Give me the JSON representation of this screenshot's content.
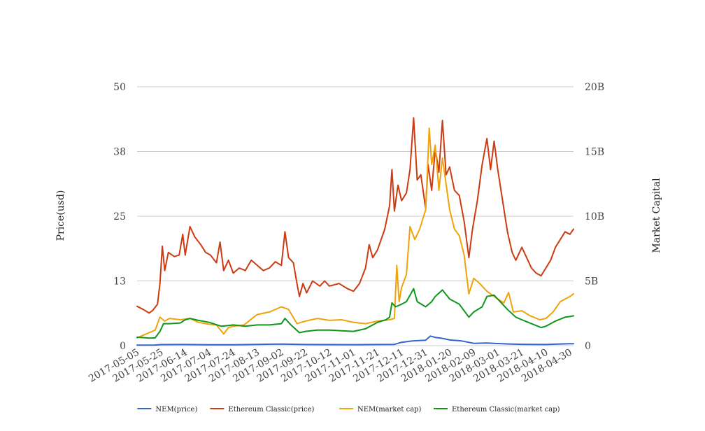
{
  "chart_data": {
    "type": "line",
    "title": "",
    "left_axis": {
      "label": "Price(usd)",
      "ticks": [
        "0",
        "13",
        "25",
        "38",
        "50"
      ],
      "range": [
        0,
        50
      ]
    },
    "right_axis": {
      "label": "Market Capital",
      "ticks": [
        "0",
        "5B",
        "10B",
        "15B",
        "20B"
      ],
      "range": [
        0,
        20000000000
      ]
    },
    "x_tick_labels": [
      "2017-05-05",
      "2017-05-25",
      "2017-06-14",
      "2017-07-04",
      "2017-07-24",
      "2017-08-13",
      "2017-09-02",
      "2017-09-22",
      "2017-10-12",
      "2017-11-01",
      "2017-11-21",
      "2017-12-11",
      "2017-12-31",
      "2018-01-20",
      "2018-02-09",
      "2018-03-01",
      "2018-03-21",
      "2018-04-10",
      "2018-04-30"
    ],
    "x_range": [
      "2017-05-05",
      "2018-05-03"
    ],
    "grid": true,
    "legend_position": "bottom",
    "series": [
      {
        "name": "NEM(price)",
        "color": "#3366cc",
        "axis": "left",
        "points": [
          [
            "2017-05-05",
            0.09
          ],
          [
            "2017-05-20",
            0.12
          ],
          [
            "2017-05-25",
            0.2
          ],
          [
            "2017-06-14",
            0.21
          ],
          [
            "2017-07-04",
            0.18
          ],
          [
            "2017-07-24",
            0.17
          ],
          [
            "2017-08-13",
            0.24
          ],
          [
            "2017-09-02",
            0.3
          ],
          [
            "2017-09-22",
            0.21
          ],
          [
            "2017-10-12",
            0.2
          ],
          [
            "2017-11-01",
            0.19
          ],
          [
            "2017-11-21",
            0.22
          ],
          [
            "2017-12-05",
            0.24
          ],
          [
            "2017-12-11",
            0.65
          ],
          [
            "2017-12-20",
            0.9
          ],
          [
            "2017-12-31",
            1.05
          ],
          [
            "2018-01-04",
            1.85
          ],
          [
            "2018-01-08",
            1.6
          ],
          [
            "2018-01-14",
            1.4
          ],
          [
            "2018-01-20",
            1.1
          ],
          [
            "2018-01-30",
            0.9
          ],
          [
            "2018-02-09",
            0.45
          ],
          [
            "2018-02-20",
            0.5
          ],
          [
            "2018-03-01",
            0.4
          ],
          [
            "2018-03-10",
            0.33
          ],
          [
            "2018-03-21",
            0.25
          ],
          [
            "2018-04-10",
            0.22
          ],
          [
            "2018-04-20",
            0.3
          ],
          [
            "2018-04-30",
            0.37
          ],
          [
            "2018-05-03",
            0.38
          ]
        ]
      },
      {
        "name": "Ethereum Classic(price)",
        "color": "#cc3b11",
        "axis": "left",
        "points": [
          [
            "2017-05-05",
            7.6
          ],
          [
            "2017-05-10",
            7.0
          ],
          [
            "2017-05-15",
            6.3
          ],
          [
            "2017-05-18",
            6.8
          ],
          [
            "2017-05-22",
            8.0
          ],
          [
            "2017-05-24",
            12.0
          ],
          [
            "2017-05-26",
            19.2
          ],
          [
            "2017-05-28",
            14.5
          ],
          [
            "2017-05-31",
            18.0
          ],
          [
            "2017-06-05",
            17.2
          ],
          [
            "2017-06-09",
            17.5
          ],
          [
            "2017-06-12",
            21.5
          ],
          [
            "2017-06-14",
            17.5
          ],
          [
            "2017-06-18",
            23.0
          ],
          [
            "2017-06-22",
            21.0
          ],
          [
            "2017-06-27",
            19.5
          ],
          [
            "2017-07-01",
            18.0
          ],
          [
            "2017-07-05",
            17.5
          ],
          [
            "2017-07-10",
            16.0
          ],
          [
            "2017-07-13",
            20.0
          ],
          [
            "2017-07-16",
            14.5
          ],
          [
            "2017-07-20",
            16.5
          ],
          [
            "2017-07-24",
            14.0
          ],
          [
            "2017-07-29",
            15.0
          ],
          [
            "2017-08-03",
            14.5
          ],
          [
            "2017-08-08",
            16.5
          ],
          [
            "2017-08-13",
            15.5
          ],
          [
            "2017-08-18",
            14.5
          ],
          [
            "2017-08-23",
            15.0
          ],
          [
            "2017-08-28",
            16.2
          ],
          [
            "2017-09-02",
            15.5
          ],
          [
            "2017-09-05",
            22.0
          ],
          [
            "2017-09-08",
            17.0
          ],
          [
            "2017-09-12",
            16.0
          ],
          [
            "2017-09-15",
            12.0
          ],
          [
            "2017-09-17",
            9.5
          ],
          [
            "2017-09-20",
            12.0
          ],
          [
            "2017-09-23",
            10.2
          ],
          [
            "2017-09-28",
            12.5
          ],
          [
            "2017-10-04",
            11.5
          ],
          [
            "2017-10-08",
            12.5
          ],
          [
            "2017-10-12",
            11.5
          ],
          [
            "2017-10-20",
            12.0
          ],
          [
            "2017-10-27",
            11.0
          ],
          [
            "2017-11-01",
            10.5
          ],
          [
            "2017-11-06",
            12.0
          ],
          [
            "2017-11-11",
            15.0
          ],
          [
            "2017-11-14",
            19.5
          ],
          [
            "2017-11-17",
            17.0
          ],
          [
            "2017-11-21",
            18.5
          ],
          [
            "2017-11-27",
            22.5
          ],
          [
            "2017-12-01",
            27.0
          ],
          [
            "2017-12-03",
            34.0
          ],
          [
            "2017-12-05",
            26.0
          ],
          [
            "2017-12-08",
            31.0
          ],
          [
            "2017-12-11",
            28.0
          ],
          [
            "2017-12-15",
            29.5
          ],
          [
            "2017-12-18",
            34.0
          ],
          [
            "2017-12-21",
            44.0
          ],
          [
            "2017-12-24",
            32.0
          ],
          [
            "2017-12-27",
            33.0
          ],
          [
            "2017-12-31",
            26.5
          ],
          [
            "2018-01-02",
            35.0
          ],
          [
            "2018-01-05",
            30.0
          ],
          [
            "2018-01-08",
            38.0
          ],
          [
            "2018-01-11",
            33.5
          ],
          [
            "2018-01-14",
            43.5
          ],
          [
            "2018-01-17",
            33.0
          ],
          [
            "2018-01-20",
            34.5
          ],
          [
            "2018-01-24",
            30.0
          ],
          [
            "2018-01-28",
            29.0
          ],
          [
            "2018-02-01",
            24.0
          ],
          [
            "2018-02-05",
            17.0
          ],
          [
            "2018-02-08",
            22.5
          ],
          [
            "2018-02-12",
            28.0
          ],
          [
            "2018-02-16",
            35.0
          ],
          [
            "2018-02-20",
            40.0
          ],
          [
            "2018-02-23",
            34.0
          ],
          [
            "2018-02-26",
            39.5
          ],
          [
            "2018-03-01",
            34.0
          ],
          [
            "2018-03-05",
            28.0
          ],
          [
            "2018-03-09",
            22.0
          ],
          [
            "2018-03-13",
            18.0
          ],
          [
            "2018-03-16",
            16.5
          ],
          [
            "2018-03-21",
            19.0
          ],
          [
            "2018-03-25",
            17.0
          ],
          [
            "2018-03-29",
            15.0
          ],
          [
            "2018-04-02",
            14.0
          ],
          [
            "2018-04-06",
            13.5
          ],
          [
            "2018-04-10",
            15.0
          ],
          [
            "2018-04-14",
            16.5
          ],
          [
            "2018-04-18",
            19.0
          ],
          [
            "2018-04-22",
            20.5
          ],
          [
            "2018-04-26",
            22.0
          ],
          [
            "2018-04-30",
            21.5
          ],
          [
            "2018-05-03",
            22.5
          ]
        ]
      },
      {
        "name": "NEM(market cap)",
        "color": "#f0a30a",
        "axis": "right",
        "points": [
          [
            "2017-05-05",
            600000000.0
          ],
          [
            "2017-05-10",
            800000000.0
          ],
          [
            "2017-05-15",
            1000000000.0
          ],
          [
            "2017-05-20",
            1200000000.0
          ],
          [
            "2017-05-24",
            2200000000.0
          ],
          [
            "2017-05-28",
            1900000000.0
          ],
          [
            "2017-06-01",
            2100000000.0
          ],
          [
            "2017-06-10",
            2000000000.0
          ],
          [
            "2017-06-18",
            2100000000.0
          ],
          [
            "2017-06-25",
            1800000000.0
          ],
          [
            "2017-07-04",
            1650000000.0
          ],
          [
            "2017-07-10",
            1600000000.0
          ],
          [
            "2017-07-16",
            900000000.0
          ],
          [
            "2017-07-20",
            1400000000.0
          ],
          [
            "2017-07-24",
            1500000000.0
          ],
          [
            "2017-08-02",
            1600000000.0
          ],
          [
            "2017-08-10",
            2200000000.0
          ],
          [
            "2017-08-13",
            2400000000.0
          ],
          [
            "2017-08-23",
            2600000000.0
          ],
          [
            "2017-09-02",
            3000000000.0
          ],
          [
            "2017-09-08",
            2800000000.0
          ],
          [
            "2017-09-15",
            1700000000.0
          ],
          [
            "2017-09-22",
            1900000000.0
          ],
          [
            "2017-10-02",
            2100000000.0
          ],
          [
            "2017-10-12",
            1950000000.0
          ],
          [
            "2017-10-22",
            2000000000.0
          ],
          [
            "2017-11-01",
            1800000000.0
          ],
          [
            "2017-11-11",
            1700000000.0
          ],
          [
            "2017-11-21",
            1900000000.0
          ],
          [
            "2017-12-01",
            2000000000.0
          ],
          [
            "2017-12-05",
            2100000000.0
          ],
          [
            "2017-12-07",
            6200000000.0
          ],
          [
            "2017-12-09",
            3400000000.0
          ],
          [
            "2017-12-11",
            4500000000.0
          ],
          [
            "2017-12-15",
            5500000000.0
          ],
          [
            "2017-12-18",
            9200000000.0
          ],
          [
            "2017-12-22",
            8200000000.0
          ],
          [
            "2017-12-26",
            9000000000.0
          ],
          [
            "2017-12-31",
            10500000000.0
          ],
          [
            "2018-01-03",
            16800000000.0
          ],
          [
            "2018-01-05",
            14000000000.0
          ],
          [
            "2018-01-08",
            15500000000.0
          ],
          [
            "2018-01-11",
            12000000000.0
          ],
          [
            "2018-01-14",
            14500000000.0
          ],
          [
            "2018-01-20",
            10500000000.0
          ],
          [
            "2018-01-24",
            9000000000.0
          ],
          [
            "2018-01-28",
            8500000000.0
          ],
          [
            "2018-02-01",
            7000000000.0
          ],
          [
            "2018-02-05",
            4000000000.0
          ],
          [
            "2018-02-09",
            5200000000.0
          ],
          [
            "2018-02-14",
            4800000000.0
          ],
          [
            "2018-02-20",
            4200000000.0
          ],
          [
            "2018-03-01",
            3600000000.0
          ],
          [
            "2018-03-06",
            3300000000.0
          ],
          [
            "2018-03-10",
            4100000000.0
          ],
          [
            "2018-03-14",
            2600000000.0
          ],
          [
            "2018-03-21",
            2700000000.0
          ],
          [
            "2018-03-28",
            2300000000.0
          ],
          [
            "2018-04-05",
            2000000000.0
          ],
          [
            "2018-04-10",
            2100000000.0
          ],
          [
            "2018-04-16",
            2600000000.0
          ],
          [
            "2018-04-22",
            3400000000.0
          ],
          [
            "2018-04-30",
            3800000000.0
          ],
          [
            "2018-05-03",
            4000000000.0
          ]
        ]
      },
      {
        "name": "Ethereum Classic(market cap)",
        "color": "#109618",
        "axis": "right",
        "points": [
          [
            "2017-05-05",
            650000000.0
          ],
          [
            "2017-05-10",
            620000000.0
          ],
          [
            "2017-05-15",
            580000000.0
          ],
          [
            "2017-05-20",
            600000000.0
          ],
          [
            "2017-05-24",
            1100000000.0
          ],
          [
            "2017-05-27",
            1700000000.0
          ],
          [
            "2017-06-01",
            1700000000.0
          ],
          [
            "2017-06-10",
            1750000000.0
          ],
          [
            "2017-06-14",
            2000000000.0
          ],
          [
            "2017-06-18",
            2100000000.0
          ],
          [
            "2017-06-25",
            1950000000.0
          ],
          [
            "2017-07-04",
            1800000000.0
          ],
          [
            "2017-07-14",
            1500000000.0
          ],
          [
            "2017-07-20",
            1550000000.0
          ],
          [
            "2017-07-24",
            1600000000.0
          ],
          [
            "2017-08-03",
            1500000000.0
          ],
          [
            "2017-08-13",
            1600000000.0
          ],
          [
            "2017-08-23",
            1600000000.0
          ],
          [
            "2017-09-02",
            1700000000.0
          ],
          [
            "2017-09-05",
            2100000000.0
          ],
          [
            "2017-09-10",
            1600000000.0
          ],
          [
            "2017-09-17",
            1000000000.0
          ],
          [
            "2017-09-22",
            1100000000.0
          ],
          [
            "2017-10-02",
            1200000000.0
          ],
          [
            "2017-10-12",
            1200000000.0
          ],
          [
            "2017-10-22",
            1150000000.0
          ],
          [
            "2017-11-01",
            1100000000.0
          ],
          [
            "2017-11-11",
            1300000000.0
          ],
          [
            "2017-11-21",
            1800000000.0
          ],
          [
            "2017-11-28",
            2000000000.0
          ],
          [
            "2017-12-01",
            2200000000.0
          ],
          [
            "2017-12-03",
            3300000000.0
          ],
          [
            "2017-12-06",
            3000000000.0
          ],
          [
            "2017-12-11",
            3200000000.0
          ],
          [
            "2017-12-15",
            3400000000.0
          ],
          [
            "2017-12-21",
            4400000000.0
          ],
          [
            "2017-12-24",
            3400000000.0
          ],
          [
            "2017-12-31",
            3000000000.0
          ],
          [
            "2018-01-05",
            3400000000.0
          ],
          [
            "2018-01-08",
            3800000000.0
          ],
          [
            "2018-01-14",
            4300000000.0
          ],
          [
            "2018-01-20",
            3600000000.0
          ],
          [
            "2018-01-28",
            3200000000.0
          ],
          [
            "2018-02-05",
            2200000000.0
          ],
          [
            "2018-02-09",
            2600000000.0
          ],
          [
            "2018-02-16",
            3000000000.0
          ],
          [
            "2018-02-20",
            3800000000.0
          ],
          [
            "2018-02-26",
            3900000000.0
          ],
          [
            "2018-03-01",
            3600000000.0
          ],
          [
            "2018-03-09",
            2800000000.0
          ],
          [
            "2018-03-16",
            2200000000.0
          ],
          [
            "2018-03-21",
            2000000000.0
          ],
          [
            "2018-03-29",
            1700000000.0
          ],
          [
            "2018-04-06",
            1400000000.0
          ],
          [
            "2018-04-10",
            1500000000.0
          ],
          [
            "2018-04-18",
            1900000000.0
          ],
          [
            "2018-04-26",
            2200000000.0
          ],
          [
            "2018-04-30",
            2250000000.0
          ],
          [
            "2018-05-03",
            2300000000.0
          ]
        ]
      }
    ]
  }
}
